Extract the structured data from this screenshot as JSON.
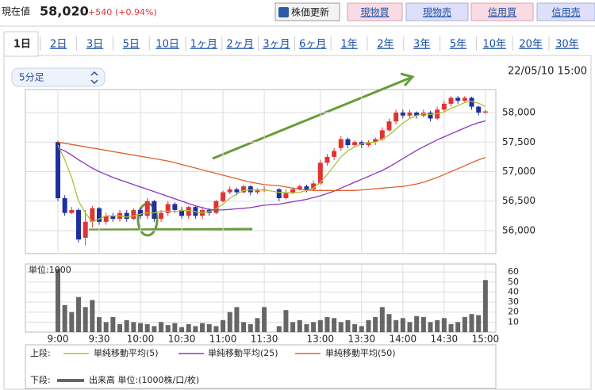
{
  "header": {
    "label": "現在値",
    "price": "58,020",
    "change": "+540",
    "change_pct": "(+0.94%)",
    "buttons": [
      "株価更新",
      "現物買",
      "現物売",
      "信用買",
      "信用売"
    ]
  },
  "tabs": [
    "1日",
    "2日",
    "3日",
    "5日",
    "10日",
    "1ヶ月",
    "2ヶ月",
    "3ヶ月",
    "6ヶ月",
    "1年",
    "2年",
    "3年",
    "5年",
    "10年",
    "20年",
    "30年"
  ],
  "interval": "5分足",
  "timestamp": "22/05/10 15:00",
  "chart_data": [
    {
      "type": "candlestick",
      "legend_label": "上段:",
      "up_color": "#e03434",
      "down_color": "#1f2f9c",
      "ylim": [
        55610,
        58390
      ],
      "yticks": [
        {
          "value": 56000,
          "label": "56,000"
        },
        {
          "value": 56500,
          "label": "56,500"
        },
        {
          "value": 57000,
          "label": "57,000"
        },
        {
          "value": 57500,
          "label": "57,500"
        },
        {
          "value": 58000,
          "label": "58,000"
        }
      ],
      "open": [
        57500,
        56550,
        56300,
        56350,
        55880,
        56150,
        56380,
        56150,
        56250,
        56200,
        56300,
        56200,
        56350,
        56250,
        56500,
        56200,
        56300,
        56450,
        56350,
        56250,
        56400,
        56250,
        56350,
        56300,
        56500,
        56650,
        56700,
        56650,
        56750,
        56650,
        56680,
        56700,
        56550,
        56650,
        56700,
        56750,
        56700,
        56800,
        57150,
        57250,
        57400,
        57550,
        57450,
        57500,
        57450,
        57500,
        57550,
        57700,
        57850,
        58000,
        57950,
        58000,
        57950,
        58000,
        57900,
        58050,
        58150,
        58250,
        58200,
        58250,
        58100,
        58000
      ],
      "high": [
        57520,
        56600,
        56400,
        56380,
        56350,
        56420,
        56400,
        56300,
        56300,
        56350,
        56350,
        56380,
        56400,
        56550,
        56520,
        56350,
        56500,
        56480,
        56400,
        56420,
        56420,
        56400,
        56380,
        56520,
        56680,
        56750,
        56730,
        56780,
        56770,
        56720,
        56750,
        56720,
        56700,
        56730,
        56780,
        56780,
        56850,
        57200,
        57300,
        57400,
        57600,
        57580,
        57530,
        57530,
        57530,
        57580,
        57750,
        57900,
        58050,
        58050,
        58050,
        58020,
        58050,
        58030,
        58100,
        58200,
        58280,
        58280,
        58280,
        58270,
        58120,
        58050
      ],
      "low": [
        56500,
        56250,
        56280,
        55800,
        55750,
        56050,
        56100,
        56100,
        56150,
        56150,
        56150,
        56180,
        56200,
        56200,
        56150,
        56150,
        56250,
        56300,
        56200,
        56200,
        56200,
        56200,
        56250,
        56280,
        56480,
        56620,
        56600,
        56630,
        56600,
        56620,
        56650,
        56500,
        56530,
        56620,
        56680,
        56650,
        56680,
        56780,
        57100,
        57200,
        57350,
        57400,
        57420,
        57400,
        57420,
        57450,
        57520,
        57680,
        57800,
        57900,
        57900,
        57900,
        57920,
        57850,
        57880,
        58000,
        58100,
        58150,
        58180,
        58050,
        57950,
        57980
      ],
      "close": [
        56550,
        56300,
        56350,
        55850,
        56150,
        56380,
        56150,
        56250,
        56200,
        56300,
        56200,
        56350,
        56250,
        56500,
        56200,
        56300,
        56450,
        56350,
        56250,
        56400,
        56250,
        56350,
        56300,
        56500,
        56650,
        56700,
        56650,
        56750,
        56650,
        56680,
        56700,
        56550,
        56650,
        56700,
        56750,
        56700,
        56800,
        57150,
        57250,
        57350,
        57550,
        57450,
        57500,
        57450,
        57500,
        57550,
        57700,
        57850,
        58000,
        57950,
        58000,
        57950,
        58000,
        57900,
        58050,
        58150,
        58250,
        58200,
        58250,
        58100,
        58000,
        58020
      ],
      "series": [
        {
          "name": "単純移動平均(5)",
          "color": "#a9c23a",
          "values": [
            57450,
            57200,
            56900,
            56500,
            56300,
            56150,
            56200,
            56250,
            56250,
            56250,
            56230,
            56250,
            56280,
            56300,
            56300,
            56330,
            56330,
            56320,
            56340,
            56340,
            56320,
            56300,
            56320,
            56370,
            56450,
            56550,
            56620,
            56680,
            56690,
            56690,
            56690,
            56650,
            56640,
            56640,
            56650,
            56680,
            56720,
            56820,
            56950,
            57100,
            57250,
            57350,
            57420,
            57470,
            57490,
            57500,
            57550,
            57620,
            57720,
            57820,
            57900,
            57950,
            57980,
            57970,
            57980,
            58010,
            58070,
            58120,
            58170,
            58190,
            58160,
            58100
          ]
        },
        {
          "name": "単純移動平均(25)",
          "color": "#9033c4",
          "values": [
            57400,
            57350,
            57280,
            57200,
            57130,
            57060,
            57000,
            56950,
            56900,
            56860,
            56820,
            56780,
            56740,
            56700,
            56660,
            56620,
            56580,
            56540,
            56500,
            56460,
            56420,
            56390,
            56360,
            56350,
            56350,
            56360,
            56370,
            56380,
            56390,
            56410,
            56430,
            56450,
            56470,
            56490,
            56510,
            56530,
            56560,
            56590,
            56630,
            56670,
            56720,
            56770,
            56820,
            56870,
            56920,
            56970,
            57020,
            57080,
            57150,
            57220,
            57290,
            57360,
            57420,
            57480,
            57540,
            57590,
            57640,
            57690,
            57740,
            57790,
            57830,
            57860
          ]
        },
        {
          "name": "単純移動平均(50)",
          "color": "#e0602c",
          "values": [
            57500,
            57480,
            57460,
            57440,
            57420,
            57400,
            57380,
            57360,
            57340,
            57320,
            57300,
            57280,
            57260,
            57240,
            57220,
            57200,
            57180,
            57150,
            57120,
            57090,
            57060,
            57030,
            57000,
            56970,
            56940,
            56910,
            56880,
            56850,
            56820,
            56800,
            56780,
            56760,
            56740,
            56720,
            56700,
            56690,
            56680,
            56680,
            56680,
            56680,
            56680,
            56680,
            56680,
            56690,
            56700,
            56710,
            56720,
            56730,
            56740,
            56750,
            56770,
            56790,
            56820,
            56860,
            56900,
            56950,
            57000,
            57050,
            57100,
            57150,
            57200,
            57240
          ]
        }
      ]
    },
    {
      "type": "bar",
      "legend_label": "下段:",
      "unit_label": "単位:1000",
      "ylim": [
        0,
        68
      ],
      "yticks": [
        10,
        20,
        30,
        40,
        50,
        60
      ],
      "categories": [
        "9:00",
        null,
        null,
        null,
        null,
        null,
        "9:30",
        null,
        null,
        null,
        null,
        null,
        "10:00",
        null,
        null,
        null,
        null,
        null,
        "10:30",
        null,
        null,
        null,
        null,
        null,
        "11:00",
        null,
        null,
        null,
        null,
        null,
        "11:30",
        null,
        null,
        null,
        null,
        null,
        null,
        "13:00",
        null,
        null,
        null,
        null,
        null,
        "13:30",
        null,
        null,
        null,
        null,
        null,
        "14:00",
        null,
        null,
        null,
        null,
        null,
        "14:30",
        null,
        null,
        null,
        null,
        null,
        "15:00"
      ],
      "series": [
        {
          "name": "出来高 単位:(1000株/口/枚)",
          "color": "#666666",
          "values": [
            63,
            27,
            20,
            35,
            25,
            32,
            15,
            10,
            15,
            8,
            12,
            10,
            9,
            8,
            6,
            10,
            7,
            9,
            5,
            8,
            6,
            9,
            8,
            6,
            12,
            20,
            25,
            10,
            8,
            14,
            25,
            6,
            22,
            10,
            12,
            8,
            10,
            12,
            15,
            14,
            10,
            12,
            8,
            6,
            12,
            15,
            25,
            18,
            12,
            14,
            10,
            16,
            15,
            10,
            12,
            14,
            8,
            10,
            15,
            18,
            17,
            52
          ]
        }
      ]
    }
  ]
}
